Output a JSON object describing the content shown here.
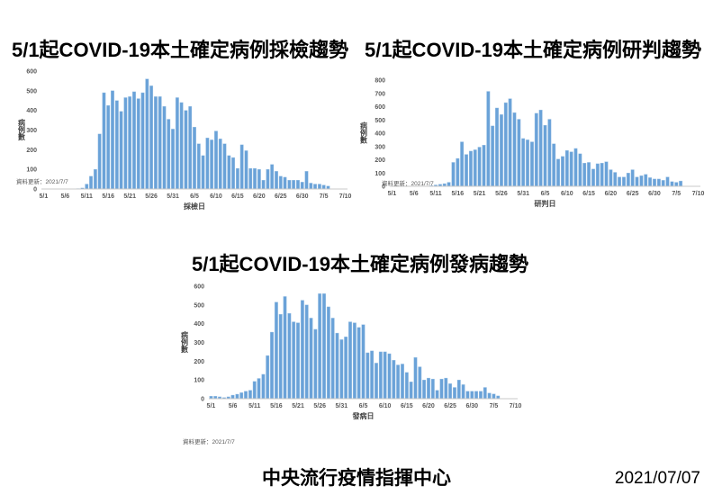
{
  "footer": {
    "organization": "中央流行疫情指揮中心",
    "date": "2021/07/07"
  },
  "colors": {
    "bar": "#6aa2d8",
    "bar_edge": "#9cc2e5",
    "axis": "#c8c8c8",
    "tick_text": "#595959",
    "title_text": "#000000"
  },
  "chart_data": [
    {
      "type": "bar",
      "title": "5/1起COVID-19本土確定病例採檢趨勢",
      "ylabel": "病例數",
      "xlabel": "採檢日",
      "note": "資料更新：2021/7/7",
      "ylim": [
        0,
        600
      ],
      "ytick_step": 100,
      "x_start": "5/1",
      "x_days": 71,
      "xticks": [
        "5/1",
        "5/6",
        "5/11",
        "5/16",
        "5/21",
        "5/26",
        "5/31",
        "6/5",
        "6/10",
        "6/15",
        "6/20",
        "6/25",
        "6/30",
        "7/5",
        "7/10"
      ],
      "values": [
        0,
        0,
        0,
        0,
        0,
        0,
        0,
        0,
        2,
        5,
        25,
        65,
        100,
        280,
        490,
        425,
        500,
        450,
        395,
        465,
        470,
        495,
        460,
        490,
        560,
        525,
        470,
        470,
        420,
        355,
        305,
        465,
        440,
        400,
        420,
        315,
        230,
        170,
        260,
        250,
        295,
        255,
        230,
        170,
        160,
        105,
        225,
        195,
        105,
        105,
        100,
        45,
        100,
        125,
        90,
        65,
        60,
        45,
        45,
        45,
        35,
        90,
        30,
        25,
        25,
        20,
        15
      ]
    },
    {
      "type": "bar",
      "title": "5/1起COVID-19本土確定病例研判趨勢",
      "ylabel": "病例數",
      "xlabel": "研判日",
      "note": "資料更新：2021/7/7",
      "ylim": [
        0,
        800
      ],
      "ytick_step": 100,
      "x_start": "5/1",
      "x_days": 71,
      "xticks": [
        "5/1",
        "5/6",
        "5/11",
        "5/16",
        "5/21",
        "5/26",
        "5/31",
        "6/5",
        "6/10",
        "6/15",
        "6/20",
        "6/25",
        "6/30",
        "7/5",
        "7/10"
      ],
      "values": [
        0,
        0,
        0,
        0,
        0,
        0,
        0,
        0,
        0,
        5,
        10,
        15,
        20,
        30,
        180,
        210,
        335,
        240,
        265,
        275,
        295,
        310,
        715,
        455,
        590,
        540,
        630,
        660,
        555,
        505,
        360,
        350,
        335,
        550,
        575,
        460,
        505,
        320,
        205,
        225,
        270,
        260,
        285,
        245,
        175,
        180,
        130,
        170,
        175,
        185,
        125,
        105,
        70,
        70,
        100,
        125,
        70,
        80,
        90,
        65,
        55,
        55,
        45,
        70,
        35,
        30,
        40
      ]
    },
    {
      "type": "bar",
      "title": "5/1起COVID-19本土確定病例發病趨勢",
      "ylabel": "病例數",
      "xlabel": "發病日",
      "note": "資料更新：2021/7/7",
      "ylim": [
        0,
        600
      ],
      "ytick_step": 100,
      "x_start": "5/1",
      "x_days": 71,
      "xticks": [
        "5/1",
        "5/6",
        "5/11",
        "5/16",
        "5/21",
        "5/26",
        "5/31",
        "6/5",
        "6/10",
        "6/15",
        "6/20",
        "6/25",
        "6/30",
        "7/5",
        "7/10"
      ],
      "values": [
        13,
        13,
        10,
        6,
        10,
        19,
        24,
        32,
        40,
        45,
        92,
        108,
        130,
        230,
        355,
        515,
        450,
        545,
        455,
        410,
        405,
        525,
        500,
        430,
        370,
        560,
        560,
        490,
        430,
        350,
        315,
        330,
        410,
        405,
        380,
        395,
        245,
        255,
        190,
        250,
        250,
        240,
        205,
        180,
        185,
        140,
        90,
        220,
        170,
        100,
        110,
        105,
        45,
        105,
        110,
        80,
        60,
        100,
        75,
        40,
        40,
        40,
        40,
        60,
        30,
        25,
        15
      ]
    }
  ]
}
